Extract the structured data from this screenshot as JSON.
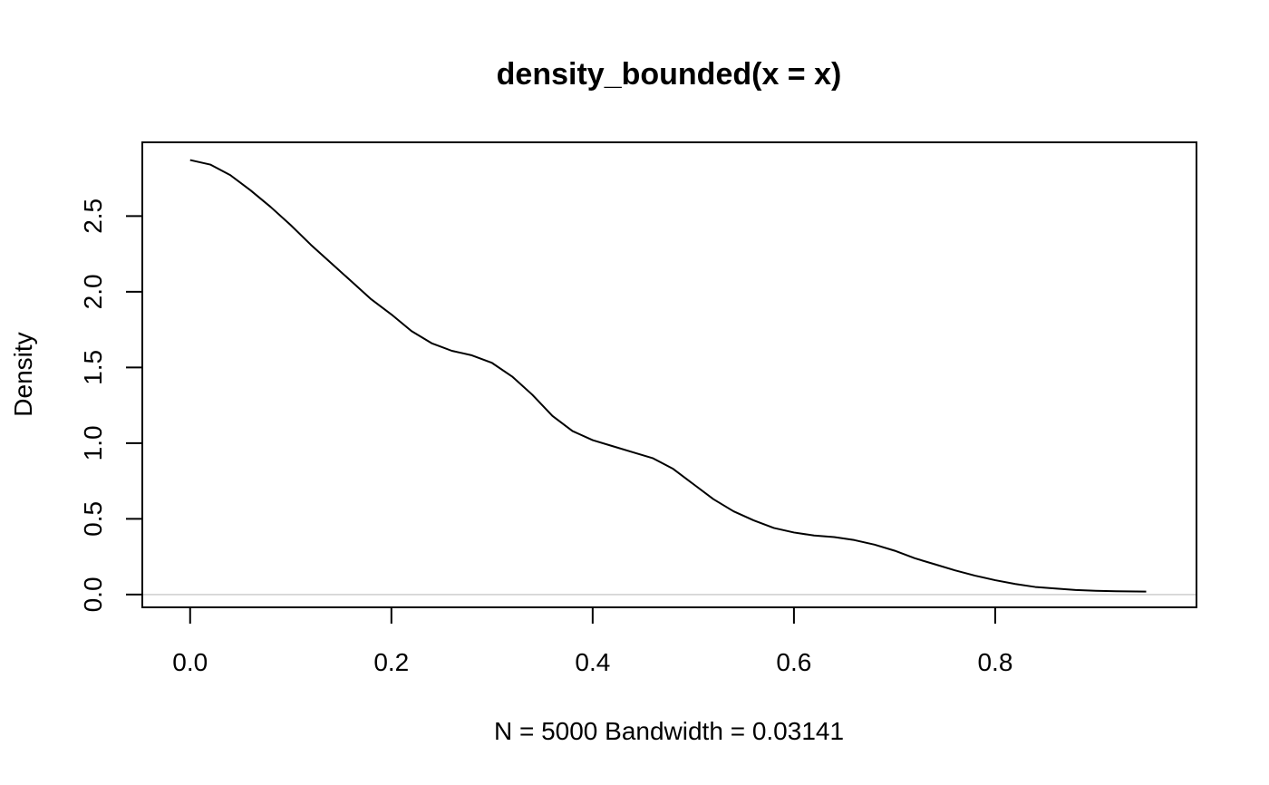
{
  "chart_data": {
    "type": "line",
    "title": "density_bounded(x = x)",
    "xlabel": "N = 5000   Bandwidth = 0.03141",
    "ylabel": "Density",
    "xlim": [
      -0.04752,
      1.0
    ],
    "ylim": [
      -0.0843,
      2.987
    ],
    "x_ticks": [
      0.0,
      0.2,
      0.4,
      0.6,
      0.8
    ],
    "x_tick_labels": [
      "0.0",
      "0.2",
      "0.4",
      "0.6",
      "0.8"
    ],
    "y_ticks": [
      0.0,
      0.5,
      1.0,
      1.5,
      2.0,
      2.5
    ],
    "y_tick_labels": [
      "0.0",
      "0.5",
      "1.0",
      "1.5",
      "2.0",
      "2.5"
    ],
    "zero_line": 0.0,
    "colors": {
      "line": "#000000",
      "zero_line": "#bebebe",
      "frame": "#000000"
    },
    "series": [
      {
        "name": "density",
        "x": [
          0.0,
          0.02,
          0.04,
          0.06,
          0.08,
          0.1,
          0.12,
          0.14,
          0.16,
          0.18,
          0.2,
          0.22,
          0.24,
          0.26,
          0.28,
          0.3,
          0.32,
          0.34,
          0.36,
          0.38,
          0.4,
          0.42,
          0.44,
          0.46,
          0.48,
          0.5,
          0.52,
          0.54,
          0.56,
          0.58,
          0.6,
          0.62,
          0.64,
          0.66,
          0.68,
          0.7,
          0.72,
          0.74,
          0.76,
          0.78,
          0.8,
          0.82,
          0.84,
          0.86,
          0.88,
          0.9,
          0.92,
          0.95
        ],
        "values": [
          2.87,
          2.84,
          2.77,
          2.67,
          2.56,
          2.44,
          2.31,
          2.19,
          2.07,
          1.95,
          1.85,
          1.74,
          1.66,
          1.61,
          1.58,
          1.53,
          1.44,
          1.32,
          1.18,
          1.08,
          1.02,
          0.98,
          0.94,
          0.9,
          0.83,
          0.73,
          0.63,
          0.55,
          0.49,
          0.44,
          0.41,
          0.39,
          0.38,
          0.36,
          0.33,
          0.29,
          0.24,
          0.2,
          0.16,
          0.125,
          0.095,
          0.07,
          0.05,
          0.04,
          0.03,
          0.025,
          0.022,
          0.02
        ]
      }
    ]
  }
}
